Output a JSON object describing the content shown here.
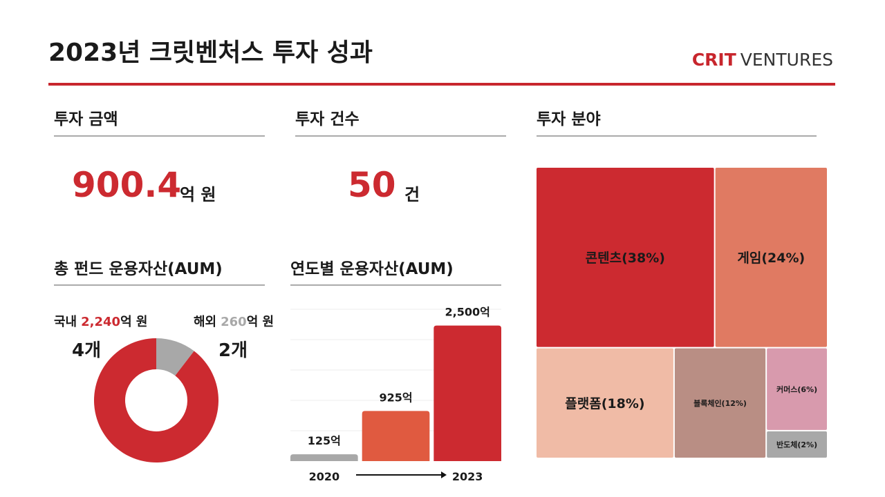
{
  "header": {
    "title": "2023년 크릿벤처스 투자 성과",
    "logo_bold": "CRIT",
    "logo_light": "VENTURES"
  },
  "kpis": [
    {
      "title": "투자 금액",
      "value": "900.4",
      "unit": "억 원"
    },
    {
      "title": "투자 건수",
      "value": "50",
      "unit": "건"
    },
    {
      "title": "투자 분야"
    }
  ],
  "chart_data": [
    {
      "type": "donut",
      "title": "총 펀드 운용자산(AUM)",
      "unit": "억 원",
      "series": [
        {
          "name": "국내",
          "color": "#cc2a30",
          "values": [
            2240
          ],
          "value_labels": [
            "2,240"
          ],
          "value_color": "#cc2a30",
          "count": "4개"
        },
        {
          "name": "해외",
          "color": "#a8a8a8",
          "values": [
            260
          ],
          "value_labels": [
            "260"
          ],
          "value_color": "#a8a8a8",
          "count": "2개"
        }
      ]
    },
    {
      "type": "bar",
      "title": "연도별 운용자산(AUM)",
      "categories": [
        "2020",
        null,
        "2023"
      ],
      "values": [
        125,
        925,
        2500
      ],
      "value_labels": [
        "125억",
        "925억",
        "2,500억"
      ],
      "colors": [
        "#a8a8a8",
        "#e05a40",
        "#cc2a30"
      ],
      "ylim": [
        0,
        2800
      ],
      "grid": true
    },
    {
      "type": "treemap",
      "categories": [
        "콘텐츠",
        "게임",
        "플랫폼",
        "블록체인",
        "커머스",
        "반도체"
      ],
      "values": [
        38,
        24,
        18,
        12,
        6,
        2
      ],
      "value_labels": [
        "콘텐츠(38%)",
        "게임(24%)",
        "플랫폼(18%)",
        "블록체인(12%)",
        "커머스(6%)",
        "반도체(2%)"
      ],
      "colors": [
        "#cc2a30",
        "#e07a62",
        "#f0bba6",
        "#b98e84",
        "#d89aad",
        "#a8a8a8"
      ]
    }
  ]
}
